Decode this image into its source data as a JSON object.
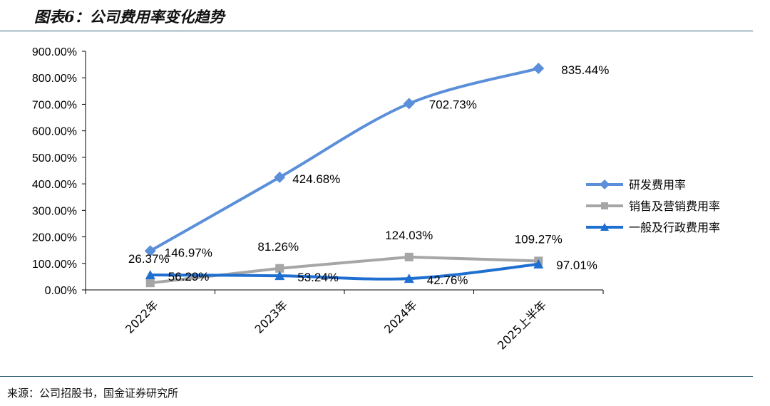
{
  "header": {
    "title": "图表6：公司费用率变化趋势"
  },
  "footer": {
    "source": "来源：公司招股书，国金证券研究所"
  },
  "chart_data": {
    "type": "line",
    "categories": [
      "2022年",
      "2023年",
      "2024年",
      "2025上半年"
    ],
    "ylim": [
      0,
      900
    ],
    "y_ticks": [
      "0.00%",
      "100.00%",
      "200.00%",
      "300.00%",
      "400.00%",
      "500.00%",
      "600.00%",
      "700.00%",
      "800.00%",
      "900.00%"
    ],
    "unit": "%",
    "legend_position": "right",
    "series": [
      {
        "name": "研发费用率",
        "values": [
          146.97,
          424.68,
          702.73,
          835.44
        ],
        "labels": [
          "146.97%",
          "424.68%",
          "702.73%",
          "835.44%"
        ],
        "color": "#5b8fd9",
        "marker": "diamond"
      },
      {
        "name": "销售及营销费用率",
        "values": [
          26.37,
          81.26,
          124.03,
          109.27
        ],
        "labels": [
          "26.37%",
          "81.26%",
          "124.03%",
          "109.27%"
        ],
        "color": "#a6a6a6",
        "marker": "square"
      },
      {
        "name": "一般及行政费用率",
        "values": [
          56.29,
          53.24,
          42.76,
          97.01
        ],
        "labels": [
          "56.29%",
          "53.24%",
          "42.76%",
          "97.01%"
        ],
        "color": "#1f6fd1",
        "marker": "triangle"
      }
    ]
  }
}
